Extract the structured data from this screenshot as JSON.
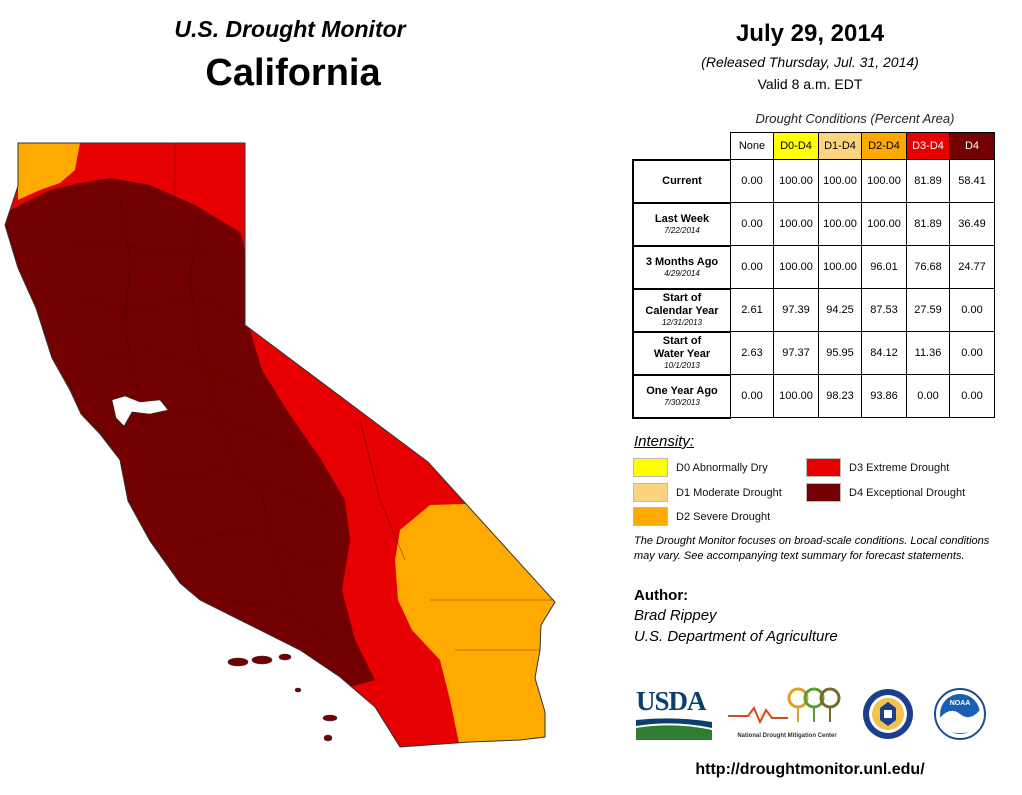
{
  "header": {
    "monitor_title": "U.S. Drought Monitor",
    "state": "California",
    "date": "July 29, 2014",
    "released": "(Released Thursday, Jul. 31, 2014)",
    "valid": "Valid 8 a.m. EDT"
  },
  "table": {
    "caption": "Drought Conditions (Percent Area)",
    "columns": [
      {
        "label": "None",
        "color": "#ffffff"
      },
      {
        "label": "D0-D4",
        "color": "#ffff00"
      },
      {
        "label": "D1-D4",
        "color": "#fcd37f"
      },
      {
        "label": "D2-D4",
        "color": "#ffaa00"
      },
      {
        "label": "D3-D4",
        "color": "#e60000"
      },
      {
        "label": "D4",
        "color": "#730000"
      }
    ],
    "rows": [
      {
        "label": "Current",
        "date": "",
        "values": [
          "0.00",
          "100.00",
          "100.00",
          "100.00",
          "81.89",
          "58.41"
        ]
      },
      {
        "label": "Last Week",
        "date": "7/22/2014",
        "values": [
          "0.00",
          "100.00",
          "100.00",
          "100.00",
          "81.89",
          "36.49"
        ]
      },
      {
        "label": "3 Months Ago",
        "date": "4/29/2014",
        "values": [
          "0.00",
          "100.00",
          "100.00",
          "96.01",
          "76.68",
          "24.77"
        ]
      },
      {
        "label": "Start of Calendar Year",
        "date": "12/31/2013",
        "values": [
          "2.61",
          "97.39",
          "94.25",
          "87.53",
          "27.59",
          "0.00"
        ]
      },
      {
        "label": "Start of Water Year",
        "date": "10/1/2013",
        "values": [
          "2.63",
          "97.37",
          "95.95",
          "84.12",
          "11.36",
          "0.00"
        ]
      },
      {
        "label": "One Year Ago",
        "date": "7/30/2013",
        "values": [
          "0.00",
          "100.00",
          "98.23",
          "93.86",
          "0.00",
          "0.00"
        ]
      }
    ]
  },
  "legend": {
    "heading": "Intensity:",
    "items": [
      {
        "label": "D0 Abnormally Dry",
        "color": "#ffff00"
      },
      {
        "label": "D1 Moderate Drought",
        "color": "#fcd37f"
      },
      {
        "label": "D2 Severe Drought",
        "color": "#ffaa00"
      },
      {
        "label": "D3 Extreme Drought",
        "color": "#e60000"
      },
      {
        "label": "D4 Exceptional Drought",
        "color": "#730000"
      }
    ],
    "note": "The Drought Monitor focuses on broad-scale conditions. Local conditions may vary. See accompanying text summary for forecast statements."
  },
  "author": {
    "heading": "Author:",
    "name": "Brad Rippey",
    "org": "U.S. Department of Agriculture"
  },
  "logos": {
    "usda": "USDA",
    "ndmc": "National Drought Mitigation Center",
    "doc_icon": "department-of-commerce-seal",
    "noaa": "NOAA"
  },
  "footer": {
    "url": "http://droughtmonitor.unl.edu/"
  }
}
